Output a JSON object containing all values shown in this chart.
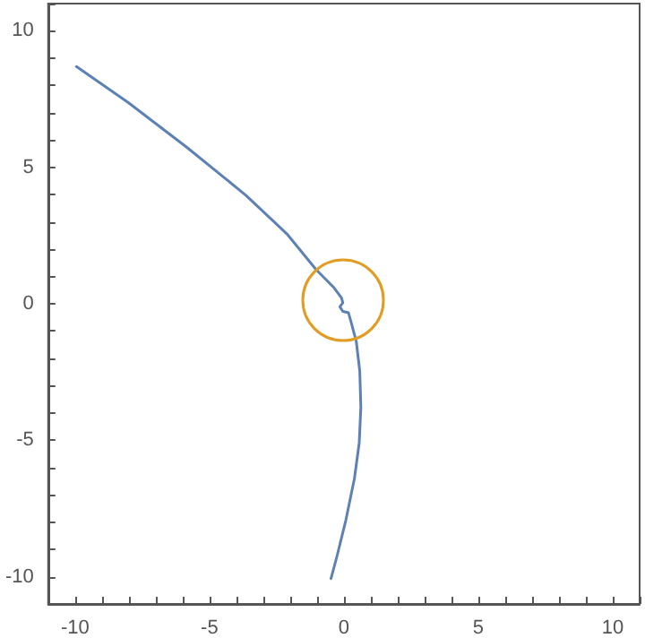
{
  "chart_data": {
    "type": "line",
    "grid": false,
    "marker": "none",
    "line_style": "solid",
    "xlim": [
      -11,
      11
    ],
    "ylim": [
      -11,
      11
    ],
    "xticks": [
      {
        "value": -11,
        "label": null
      },
      -10,
      {
        "value": -9,
        "label": null
      },
      {
        "value": -8,
        "label": null
      },
      {
        "value": -7,
        "label": null
      },
      {
        "value": -6,
        "label": null
      },
      -5,
      {
        "value": -4,
        "label": null
      },
      {
        "value": -3,
        "label": null
      },
      {
        "value": -2,
        "label": null
      },
      {
        "value": -1,
        "label": null
      },
      0,
      {
        "value": 1,
        "label": null
      },
      {
        "value": 2,
        "label": null
      },
      {
        "value": 3,
        "label": null
      },
      {
        "value": 4,
        "label": null
      },
      5,
      {
        "value": 6,
        "label": null
      },
      {
        "value": 7,
        "label": null
      },
      {
        "value": 8,
        "label": null
      },
      {
        "value": 9,
        "label": null
      },
      10,
      {
        "value": 11,
        "label": null
      }
    ],
    "yticks": [
      {
        "value": -11,
        "label": null
      },
      -10,
      {
        "value": -9,
        "label": null
      },
      {
        "value": -8,
        "label": null
      },
      {
        "value": -7,
        "label": null
      },
      {
        "value": -6,
        "label": null
      },
      -5,
      {
        "value": -4,
        "label": null
      },
      {
        "value": -3,
        "label": null
      },
      {
        "value": -2,
        "label": null
      },
      {
        "value": -1,
        "label": null
      },
      0,
      {
        "value": 1,
        "label": null
      },
      {
        "value": 2,
        "label": null
      },
      {
        "value": 3,
        "label": null
      },
      {
        "value": 4,
        "label": null
      },
      5,
      {
        "value": 6,
        "label": null
      },
      {
        "value": 7,
        "label": null
      },
      {
        "value": 8,
        "label": null
      },
      {
        "value": 9,
        "label": null
      },
      10,
      {
        "value": 11,
        "label": null
      }
    ],
    "series": [
      {
        "color": "#5e81b5",
        "x": [
          -9.95,
          -8.02,
          -5.84,
          -3.65,
          -2.12,
          -1.03,
          -0.37,
          -0.09,
          -0.04,
          -0.15,
          -0.04,
          0.17,
          0.28,
          0.46,
          0.59,
          0.63,
          0.57,
          0.39,
          0.07,
          -0.26,
          -0.48
        ],
        "values": [
          8.69,
          7.37,
          5.73,
          3.98,
          2.56,
          1.25,
          0.59,
          0.22,
          0.04,
          -0.11,
          -0.28,
          -0.33,
          -0.72,
          -1.38,
          -2.47,
          -3.79,
          -5.1,
          -6.41,
          -7.94,
          -9.26,
          -10.07
        ]
      }
    ]
  }
}
